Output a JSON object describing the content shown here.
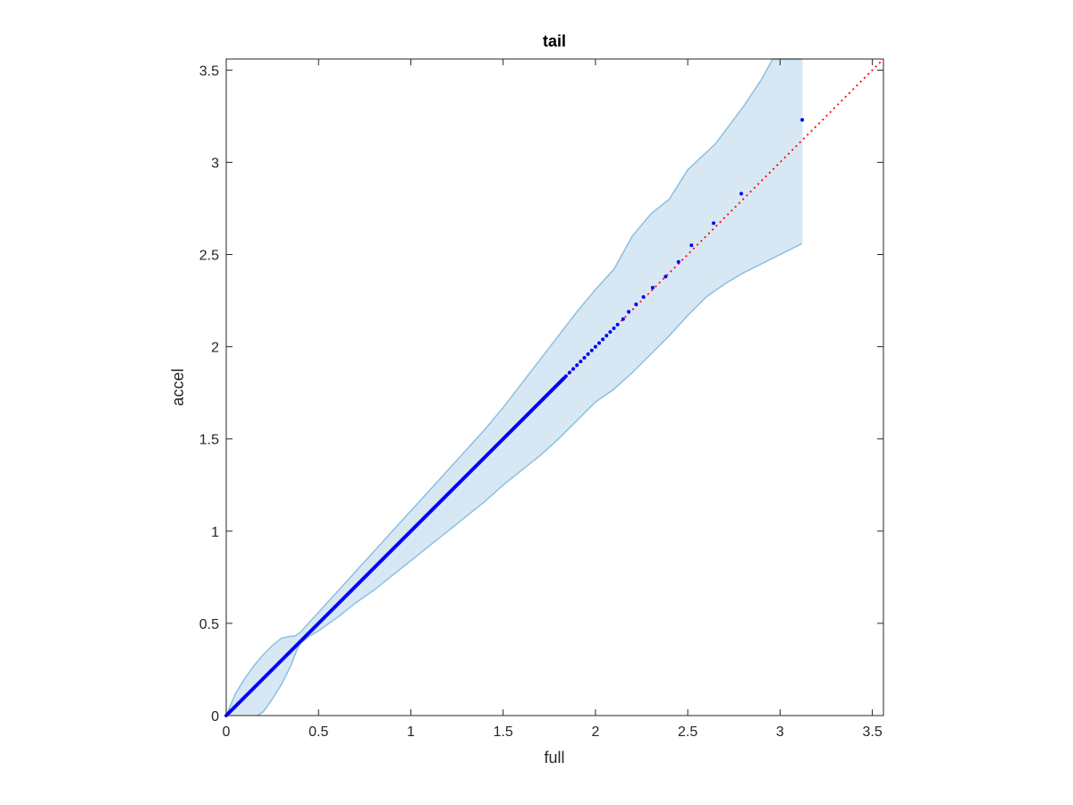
{
  "chart_data": {
    "type": "scatter",
    "title": "tail",
    "xlabel": "full",
    "ylabel": "accel",
    "xlim": [
      0,
      3.56
    ],
    "ylim": [
      0,
      3.56
    ],
    "xticks": [
      0,
      0.5,
      1,
      1.5,
      2,
      2.5,
      3,
      3.5
    ],
    "xtick_labels": [
      "0",
      "0.5",
      "1",
      "1.5",
      "2",
      "2.5",
      "3",
      "3.5"
    ],
    "yticks": [
      0,
      0.5,
      1,
      1.5,
      2,
      2.5,
      3,
      3.5
    ],
    "ytick_labels": [
      "0",
      "0.5",
      "1",
      "1.5",
      "2",
      "2.5",
      "3",
      "3.5"
    ],
    "grid": false,
    "box": true,
    "reference_line": {
      "style": "dotted",
      "color": "#ff0000",
      "x": [
        0,
        3.56
      ],
      "y": [
        0,
        3.56
      ]
    },
    "band": {
      "color": "#d7e8f4",
      "edge_color": "#8dbfe0",
      "upper": [
        [
          0,
          0
        ],
        [
          0.05,
          0.12
        ],
        [
          0.1,
          0.2
        ],
        [
          0.15,
          0.27
        ],
        [
          0.2,
          0.33
        ],
        [
          0.25,
          0.38
        ],
        [
          0.3,
          0.42
        ],
        [
          0.35,
          0.43
        ],
        [
          0.37,
          0.43
        ],
        [
          0.4,
          0.45
        ],
        [
          0.5,
          0.56
        ],
        [
          0.6,
          0.67
        ],
        [
          0.7,
          0.78
        ],
        [
          0.8,
          0.89
        ],
        [
          0.9,
          1.0
        ],
        [
          1.0,
          1.11
        ],
        [
          1.1,
          1.22
        ],
        [
          1.2,
          1.33
        ],
        [
          1.3,
          1.44
        ],
        [
          1.4,
          1.55
        ],
        [
          1.5,
          1.67
        ],
        [
          1.6,
          1.8
        ],
        [
          1.7,
          1.93
        ],
        [
          1.8,
          2.06
        ],
        [
          1.9,
          2.19
        ],
        [
          2.0,
          2.31
        ],
        [
          2.1,
          2.42
        ],
        [
          2.2,
          2.6
        ],
        [
          2.3,
          2.72
        ],
        [
          2.4,
          2.8
        ],
        [
          2.5,
          2.96
        ],
        [
          2.65,
          3.1
        ],
        [
          2.8,
          3.3
        ],
        [
          2.9,
          3.45
        ],
        [
          2.96,
          3.56
        ],
        [
          3.12,
          3.56
        ]
      ],
      "lower": [
        [
          0.17,
          0
        ],
        [
          0.2,
          0.02
        ],
        [
          0.25,
          0.09
        ],
        [
          0.3,
          0.17
        ],
        [
          0.35,
          0.27
        ],
        [
          0.38,
          0.35
        ],
        [
          0.4,
          0.39
        ],
        [
          0.45,
          0.43
        ],
        [
          0.5,
          0.46
        ],
        [
          0.6,
          0.53
        ],
        [
          0.7,
          0.61
        ],
        [
          0.8,
          0.68
        ],
        [
          0.9,
          0.76
        ],
        [
          1.0,
          0.84
        ],
        [
          1.1,
          0.92
        ],
        [
          1.2,
          1.0
        ],
        [
          1.3,
          1.08
        ],
        [
          1.4,
          1.16
        ],
        [
          1.5,
          1.25
        ],
        [
          1.6,
          1.33
        ],
        [
          1.7,
          1.41
        ],
        [
          1.8,
          1.5
        ],
        [
          1.9,
          1.6
        ],
        [
          2.0,
          1.7
        ],
        [
          2.1,
          1.77
        ],
        [
          2.2,
          1.86
        ],
        [
          2.3,
          1.96
        ],
        [
          2.4,
          2.06
        ],
        [
          2.5,
          2.17
        ],
        [
          2.6,
          2.27
        ],
        [
          2.7,
          2.34
        ],
        [
          2.8,
          2.4
        ],
        [
          2.9,
          2.45
        ],
        [
          3.0,
          2.5
        ],
        [
          3.12,
          2.56
        ]
      ]
    },
    "series": [
      {
        "marker": "point",
        "color": "#0000ff",
        "points": [
          [
            1.84,
            1.84
          ],
          [
            1.86,
            1.86
          ],
          [
            1.88,
            1.88
          ],
          [
            1.9,
            1.9
          ],
          [
            1.92,
            1.92
          ],
          [
            1.94,
            1.94
          ],
          [
            1.96,
            1.96
          ],
          [
            1.98,
            1.98
          ],
          [
            2.0,
            2.0
          ],
          [
            2.02,
            2.02
          ],
          [
            2.04,
            2.04
          ],
          [
            2.06,
            2.06
          ],
          [
            2.08,
            2.08
          ],
          [
            2.1,
            2.1
          ],
          [
            2.12,
            2.12
          ],
          [
            2.15,
            2.15
          ],
          [
            2.18,
            2.19
          ],
          [
            2.22,
            2.23
          ],
          [
            2.26,
            2.27
          ],
          [
            2.31,
            2.32
          ],
          [
            2.38,
            2.38
          ],
          [
            2.45,
            2.46
          ],
          [
            2.52,
            2.55
          ],
          [
            2.64,
            2.67
          ],
          [
            2.79,
            2.83
          ],
          [
            3.12,
            3.23
          ]
        ],
        "dense_segment": {
          "from": [
            0,
            0
          ],
          "to": [
            1.83,
            1.83
          ]
        }
      }
    ]
  }
}
